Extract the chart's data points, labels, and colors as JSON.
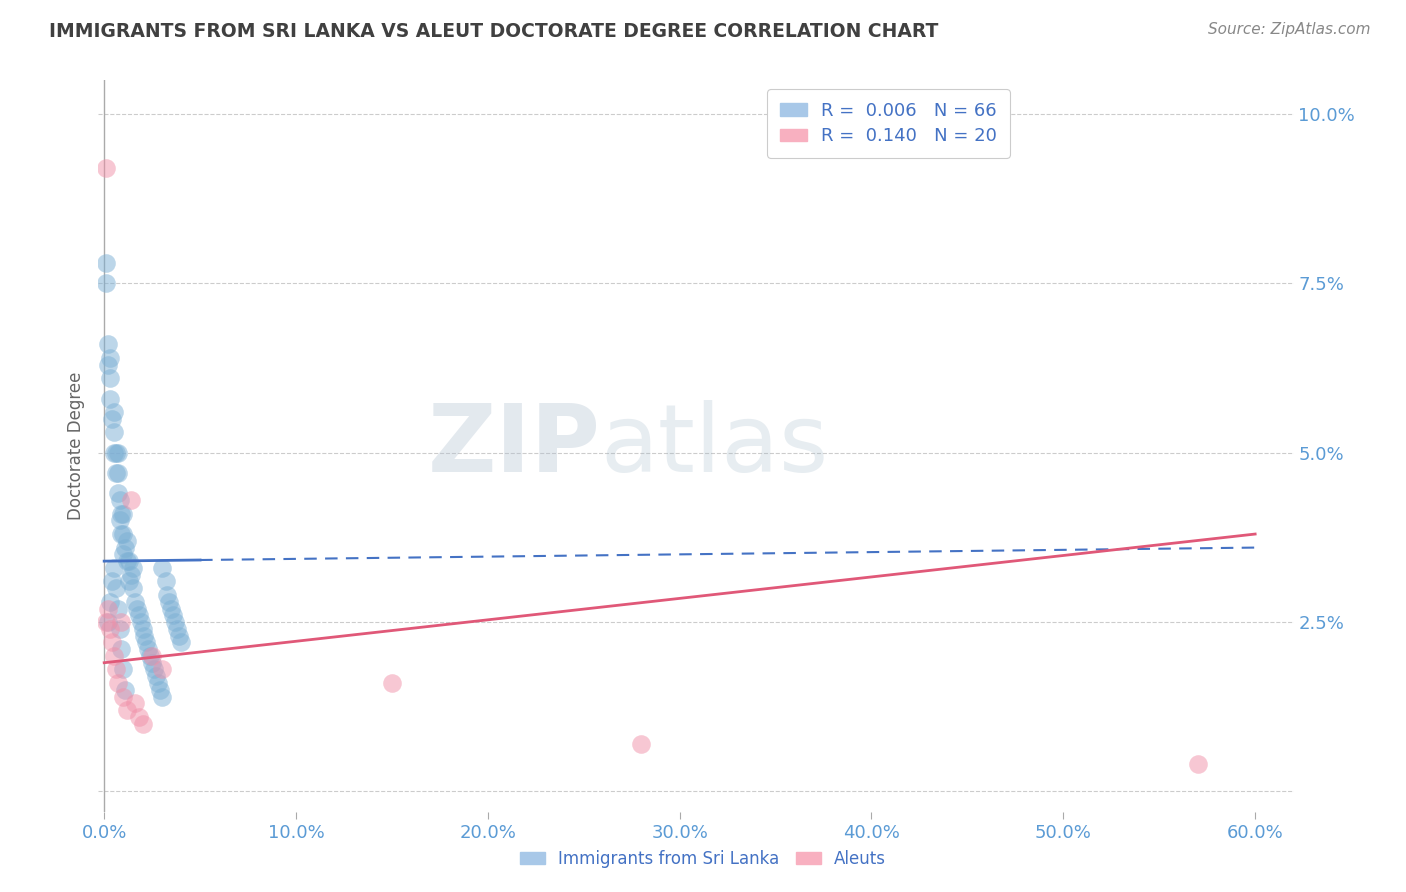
{
  "title": "IMMIGRANTS FROM SRI LANKA VS ALEUT DOCTORATE DEGREE CORRELATION CHART",
  "source": "Source: ZipAtlas.com",
  "ylabel": "Doctorate Degree",
  "right_yticklabels": [
    "",
    "2.5%",
    "5.0%",
    "7.5%",
    "10.0%"
  ],
  "right_ytick_vals": [
    0.0,
    0.025,
    0.05,
    0.075,
    0.1
  ],
  "xlim": [
    -0.003,
    0.62
  ],
  "ylim": [
    -0.003,
    0.105
  ],
  "xticks": [
    0.0,
    0.1,
    0.2,
    0.3,
    0.4,
    0.5,
    0.6
  ],
  "xticklabels": [
    "0.0%",
    "10.0%",
    "20.0%",
    "30.0%",
    "40.0%",
    "50.0%",
    "60.0%"
  ],
  "background_color": "#ffffff",
  "watermark_zip": "ZIP",
  "watermark_atlas": "atlas",
  "blue_color": "#7bafd4",
  "pink_color": "#f090a8",
  "blue_line_color": "#4472c4",
  "pink_line_color": "#e05878",
  "grid_color": "#cccccc",
  "tick_color": "#5b9bd5",
  "title_color": "#404040",
  "source_color": "#888888",
  "blue_line_x0": 0.0,
  "blue_line_x_solid_end": 0.05,
  "blue_line_x1": 0.6,
  "blue_line_y0": 0.034,
  "blue_line_y1": 0.036,
  "pink_line_x0": 0.0,
  "pink_line_x1": 0.6,
  "pink_line_y0": 0.019,
  "pink_line_y1": 0.038,
  "sri_lanka_x": [
    0.001,
    0.001,
    0.002,
    0.002,
    0.003,
    0.003,
    0.003,
    0.004,
    0.005,
    0.005,
    0.005,
    0.006,
    0.006,
    0.007,
    0.007,
    0.007,
    0.008,
    0.008,
    0.009,
    0.009,
    0.01,
    0.01,
    0.01,
    0.011,
    0.012,
    0.012,
    0.013,
    0.013,
    0.014,
    0.015,
    0.015,
    0.016,
    0.017,
    0.018,
    0.019,
    0.02,
    0.021,
    0.022,
    0.023,
    0.024,
    0.025,
    0.026,
    0.027,
    0.028,
    0.029,
    0.03,
    0.03,
    0.032,
    0.033,
    0.034,
    0.035,
    0.036,
    0.037,
    0.038,
    0.039,
    0.04,
    0.002,
    0.003,
    0.004,
    0.005,
    0.006,
    0.007,
    0.008,
    0.009,
    0.01,
    0.011
  ],
  "sri_lanka_y": [
    0.075,
    0.078,
    0.063,
    0.066,
    0.058,
    0.061,
    0.064,
    0.055,
    0.05,
    0.053,
    0.056,
    0.047,
    0.05,
    0.044,
    0.047,
    0.05,
    0.04,
    0.043,
    0.038,
    0.041,
    0.035,
    0.038,
    0.041,
    0.036,
    0.034,
    0.037,
    0.031,
    0.034,
    0.032,
    0.03,
    0.033,
    0.028,
    0.027,
    0.026,
    0.025,
    0.024,
    0.023,
    0.022,
    0.021,
    0.02,
    0.019,
    0.018,
    0.017,
    0.016,
    0.015,
    0.014,
    0.033,
    0.031,
    0.029,
    0.028,
    0.027,
    0.026,
    0.025,
    0.024,
    0.023,
    0.022,
    0.025,
    0.028,
    0.031,
    0.033,
    0.03,
    0.027,
    0.024,
    0.021,
    0.018,
    0.015
  ],
  "aleut_x": [
    0.001,
    0.001,
    0.002,
    0.003,
    0.004,
    0.005,
    0.006,
    0.007,
    0.009,
    0.01,
    0.012,
    0.014,
    0.016,
    0.018,
    0.02,
    0.025,
    0.03,
    0.15,
    0.28,
    0.57
  ],
  "aleut_y": [
    0.092,
    0.025,
    0.027,
    0.024,
    0.022,
    0.02,
    0.018,
    0.016,
    0.025,
    0.014,
    0.012,
    0.043,
    0.013,
    0.011,
    0.01,
    0.02,
    0.018,
    0.016,
    0.007,
    0.004
  ]
}
